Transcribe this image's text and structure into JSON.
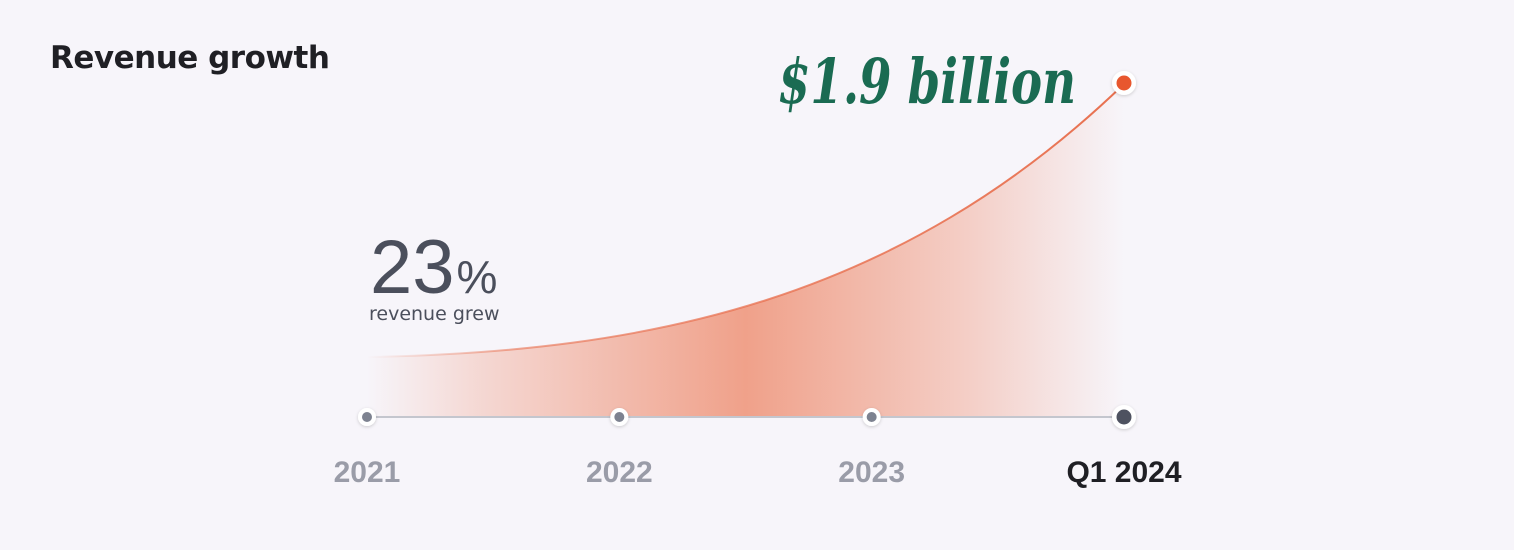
{
  "title": "Revenue growth",
  "growth": {
    "value": "23",
    "unit": "%",
    "caption": "revenue grew"
  },
  "total_label": "$1.9 billion",
  "colors": {
    "curve": "#e8704f",
    "area": "#f0a18a",
    "endpoint": "#e8572e",
    "total_text": "#1a6b52",
    "tick_muted": "#9a9ca8",
    "tick_active": "#1f1f24",
    "marker": "#7d8290",
    "marker_active": "#4e5260"
  },
  "chart_data": {
    "type": "area",
    "categories": [
      "2021",
      "2022",
      "2023",
      "Q1 2024"
    ],
    "active_category": "Q1 2024",
    "ylabel": "",
    "xlabel": "",
    "grid": false,
    "legend": "none",
    "annotations": [
      "23% revenue grew",
      "$1.9 billion"
    ]
  }
}
